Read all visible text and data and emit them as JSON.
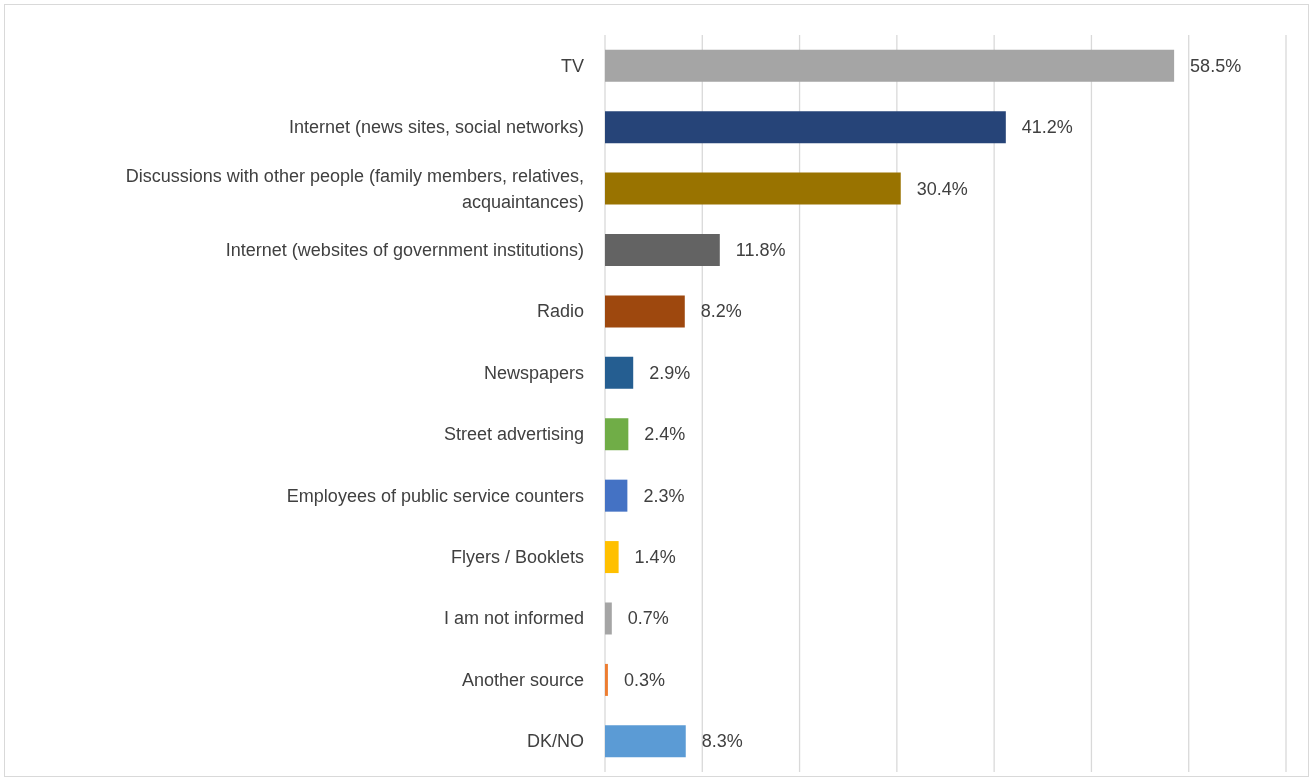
{
  "chart_data": {
    "type": "bar",
    "orientation": "horizontal",
    "categories": [
      "TV",
      "Internet (news sites, social networks)",
      "Discussions with other people (family members, relatives, acquaintances)",
      "Internet (websites of government institutions)",
      "Radio",
      "Newspapers",
      "Street advertising",
      "Employees of public service counters",
      "Flyers / Booklets",
      "I am not informed",
      "Another source",
      "DK/NO"
    ],
    "values": [
      58.5,
      41.2,
      30.4,
      11.8,
      8.2,
      2.9,
      2.4,
      2.3,
      1.4,
      0.7,
      0.3,
      8.3
    ],
    "value_labels": [
      "58.5%",
      "41.2%",
      "30.4%",
      "11.8%",
      "8.2%",
      "2.9%",
      "2.4%",
      "2.3%",
      "1.4%",
      "0.7%",
      "0.3%",
      "8.3%"
    ],
    "colors": [
      "#a5a5a5",
      "#264478",
      "#997300",
      "#636363",
      "#9e480e",
      "#255e91",
      "#70ad47",
      "#4472c4",
      "#ffc000",
      "#a5a5a5",
      "#ed7d31",
      "#5b9bd5"
    ],
    "xlim": [
      0,
      70
    ],
    "xticks": [
      {
        "value": 0,
        "label": null
      },
      {
        "value": 10,
        "label": null
      },
      {
        "value": 20,
        "label": null
      },
      {
        "value": 30,
        "label": null
      },
      {
        "value": 40,
        "label": null
      },
      {
        "value": 50,
        "label": null
      },
      {
        "value": 60,
        "label": null
      },
      {
        "value": 70,
        "label": null
      }
    ],
    "grid": "x",
    "legend": false,
    "tick_labels": "y"
  }
}
